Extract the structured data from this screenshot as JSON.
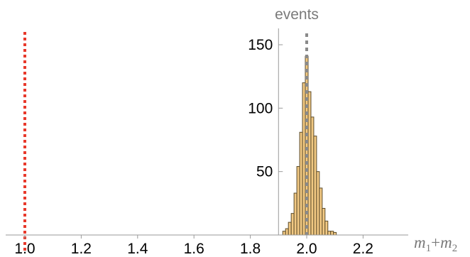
{
  "chart_data": {
    "type": "bar",
    "title": "",
    "ylabel": "events",
    "xlabel_parts": {
      "m": "m",
      "sub1": "1",
      "plus": "+",
      "sub2": "2"
    },
    "xlim": [
      0.98,
      2.33
    ],
    "ylim": [
      0,
      160
    ],
    "x_ticks": [
      "1.0",
      "1.2",
      "1.4",
      "1.6",
      "1.8",
      "2.0",
      "2.2"
    ],
    "y_ticks": [
      "50",
      "100",
      "150"
    ],
    "bin_width": 0.01,
    "bins": [
      {
        "x": 1.92,
        "y": 3
      },
      {
        "x": 1.93,
        "y": 5
      },
      {
        "x": 1.94,
        "y": 10
      },
      {
        "x": 1.95,
        "y": 17
      },
      {
        "x": 1.96,
        "y": 33
      },
      {
        "x": 1.97,
        "y": 54
      },
      {
        "x": 1.98,
        "y": 81
      },
      {
        "x": 1.99,
        "y": 120
      },
      {
        "x": 2.0,
        "y": 141
      },
      {
        "x": 2.01,
        "y": 113
      },
      {
        "x": 2.02,
        "y": 93
      },
      {
        "x": 2.03,
        "y": 78
      },
      {
        "x": 2.04,
        "y": 50
      },
      {
        "x": 2.05,
        "y": 37
      },
      {
        "x": 2.06,
        "y": 21
      },
      {
        "x": 2.07,
        "y": 11
      },
      {
        "x": 2.08,
        "y": 3
      },
      {
        "x": 2.09,
        "y": 3
      },
      {
        "x": 2.1,
        "y": 2
      }
    ],
    "reference_lines": [
      {
        "x": 1.0,
        "color": "#e8392b",
        "style": "dotted"
      },
      {
        "x": 2.0,
        "color": "#8a8a8a",
        "style": "dotted"
      }
    ],
    "y_axis_position": 1.9,
    "grid": false,
    "colors": {
      "bar_fill": "#f2c983",
      "bar_stroke": "#5a4a2a",
      "axis": "#9a9a9a"
    }
  }
}
